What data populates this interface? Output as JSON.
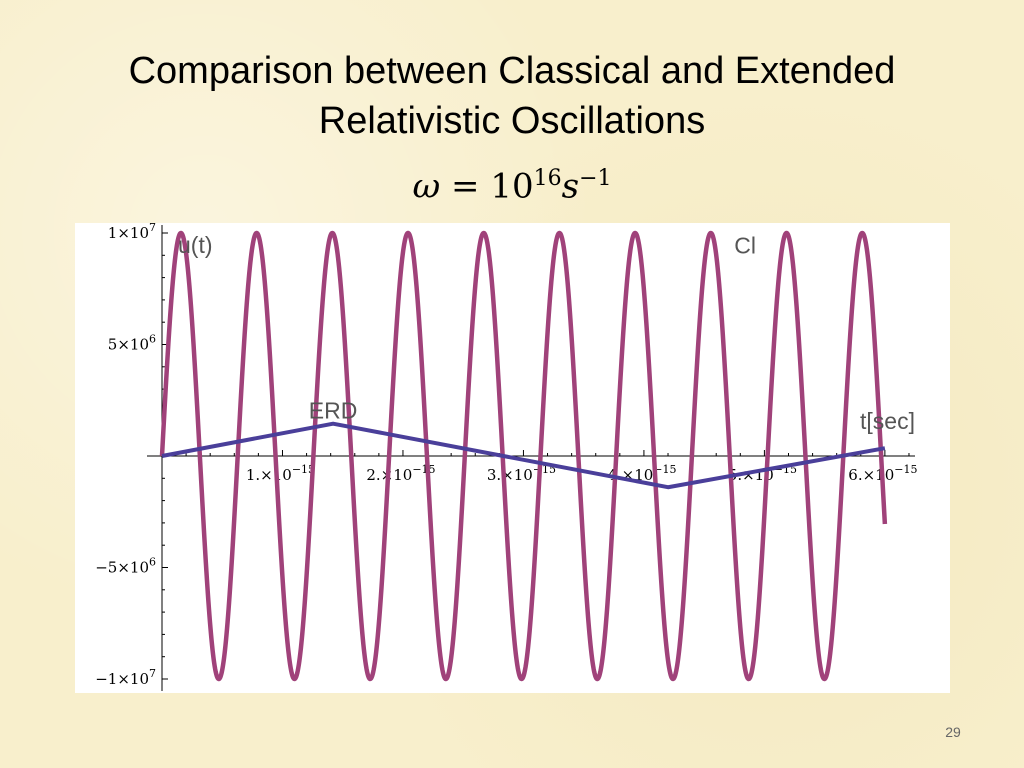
{
  "slide": {
    "title_line1": "Comparison between Classical and Extended",
    "title_line2": "Relativistic Oscillations",
    "formula": {
      "symbol": "ω",
      "equals": " = ",
      "base": "10",
      "exponent": "16",
      "unit": "s",
      "unit_exponent": "−1"
    },
    "page_number": "29"
  },
  "colors": {
    "classical": "#a0427a",
    "erd": "#4a3f9a",
    "background": "#f8efcc"
  },
  "chart_data": {
    "type": "line",
    "title": "",
    "xlabel": "t[sec]",
    "ylabel": "u(t)",
    "xlim": [
      0,
      6.25e-15
    ],
    "ylim": [
      -10000000.0,
      10000000.0
    ],
    "grid": false,
    "x_ticks": [
      {
        "value": 1e-15,
        "mantissa": "1.×10",
        "exp": "−15"
      },
      {
        "value": 2e-15,
        "mantissa": "2.×10",
        "exp": "−15"
      },
      {
        "value": 3e-15,
        "mantissa": "3.×10",
        "exp": "−15"
      },
      {
        "value": 4e-15,
        "mantissa": "4.×10",
        "exp": "−15"
      },
      {
        "value": 5e-15,
        "mantissa": "5.×10",
        "exp": "−15"
      },
      {
        "value": 6e-15,
        "mantissa": "6.×10",
        "exp": "−15"
      }
    ],
    "y_ticks": [
      {
        "value": 10000000.0,
        "mantissa": "1×10",
        "exp": "7"
      },
      {
        "value": 5000000.0,
        "mantissa": "5×10",
        "exp": "6"
      },
      {
        "value": -5000000.0,
        "mantissa": "−5×10",
        "exp": "6"
      },
      {
        "value": -10000000.0,
        "mantissa": "−1×10",
        "exp": "7"
      }
    ],
    "series": [
      {
        "name": "Cl",
        "kind": "sine",
        "amplitude": 10000000.0,
        "omega": 1e+16,
        "t_start": 0,
        "t_end": 6e-15
      },
      {
        "name": "ERD",
        "kind": "piecewise",
        "x": [
          0,
          1.42e-15,
          4.2e-15,
          6e-15
        ],
        "y": [
          0,
          1450000.0,
          -1400000.0,
          350000.0
        ]
      }
    ],
    "annotations": [
      {
        "text": "Cl",
        "x": 4.75e-15,
        "y": 9700000.0
      },
      {
        "text": "ERD",
        "x": 1.42e-15,
        "y": 2300000.0
      }
    ]
  }
}
